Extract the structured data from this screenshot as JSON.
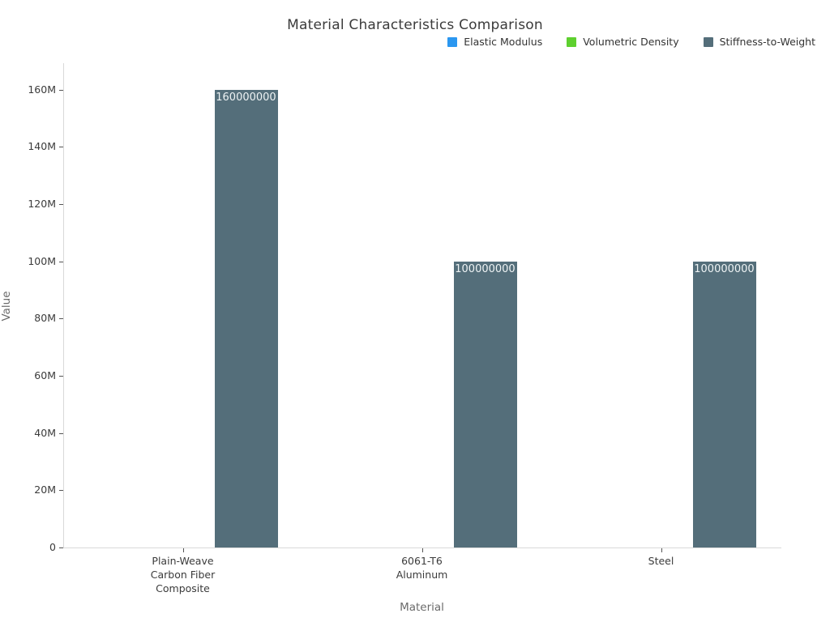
{
  "page": {
    "background_color": "#ffffff",
    "text_color": "#3b3b3b",
    "muted_text_color": "#6b6b6b",
    "axis_line_color": "#d9d9d9",
    "tick_mark_color": "#555555"
  },
  "chart_data": {
    "type": "bar",
    "title": "Material Characteristics Comparison",
    "xlabel": "Material",
    "ylabel": "Value",
    "categories": [
      "Plain-Weave Carbon Fiber Composite",
      "6061-T6 Aluminum",
      "Steel"
    ],
    "category_tick_lines": [
      [
        "Plain-Weave",
        "Carbon Fiber",
        "Composite"
      ],
      [
        "6061-T6",
        "Aluminum"
      ],
      [
        "Steel"
      ]
    ],
    "series": [
      {
        "name": "Elastic Modulus",
        "color": "#2b97f0",
        "values": [
          null,
          null,
          null
        ],
        "bar_labels": [
          null,
          null,
          null
        ]
      },
      {
        "name": "Volumetric Density",
        "color": "#5ed02f",
        "values": [
          null,
          null,
          null
        ],
        "bar_labels": [
          null,
          null,
          null
        ]
      },
      {
        "name": "Stiffness-to-Weight",
        "color": "#546e7a",
        "values": [
          160000000,
          100000000,
          100000000
        ],
        "bar_labels": [
          "160000000",
          "100000000",
          "100000000"
        ]
      }
    ],
    "bar_label_color": "#eef3f4",
    "yticks": [
      {
        "value": 0,
        "label": "0"
      },
      {
        "value": 20000000,
        "label": "20M"
      },
      {
        "value": 40000000,
        "label": "40M"
      },
      {
        "value": 60000000,
        "label": "60M"
      },
      {
        "value": 80000000,
        "label": "80M"
      },
      {
        "value": 100000000,
        "label": "100M"
      },
      {
        "value": 120000000,
        "label": "120M"
      },
      {
        "value": 140000000,
        "label": "140M"
      },
      {
        "value": 160000000,
        "label": "160M"
      }
    ],
    "ylim": [
      0,
      169300000
    ],
    "grid": false,
    "legend_position": "top-right"
  }
}
